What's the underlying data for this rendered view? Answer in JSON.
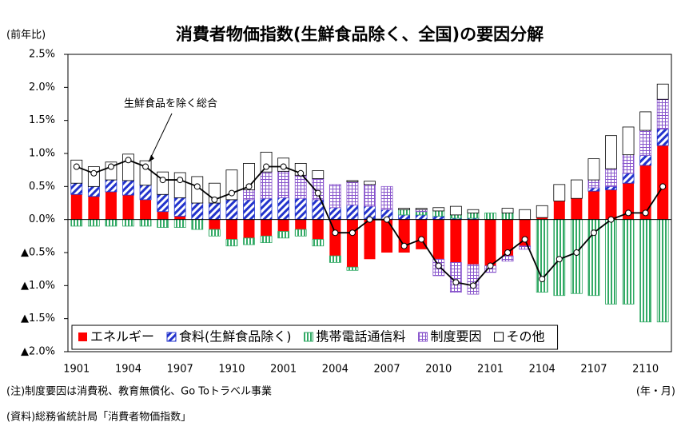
{
  "chart_data": {
    "type": "bar",
    "title": "消費者物価指数(生鮮食品除く、全国)の要因分解",
    "y_axis_label": "(前年比)",
    "x_axis_label": "(年・月)",
    "notes": [
      "(注)制度要因は消費税、教育無償化、Go Toトラベル事業",
      "(資料)総務省統計局「消費者物価指数」"
    ],
    "categories": [
      "1901",
      null,
      null,
      "1904",
      null,
      null,
      "1907",
      null,
      null,
      "1910",
      null,
      null,
      "2001",
      null,
      null,
      "2004",
      null,
      null,
      "2007",
      null,
      null,
      "2010",
      null,
      null,
      "2101",
      null,
      null,
      "2104",
      null,
      null,
      "2107",
      null,
      null,
      "2110",
      null
    ],
    "series": [
      {
        "name": "エネルギー",
        "color": "#ff0000",
        "values": [
          0.38,
          0.35,
          0.42,
          0.37,
          0.3,
          0.12,
          0.05,
          0.0,
          -0.15,
          -0.3,
          -0.28,
          -0.25,
          -0.18,
          -0.15,
          -0.3,
          -0.55,
          -0.72,
          -0.6,
          -0.5,
          -0.5,
          -0.45,
          -0.6,
          -0.65,
          -0.68,
          -0.7,
          -0.55,
          -0.4,
          0.03,
          0.28,
          0.32,
          0.43,
          0.45,
          0.55,
          0.82,
          1.12
        ]
      },
      {
        "name": "食料(生鮮食品除く)",
        "color": "#2233cc",
        "values": [
          0.17,
          0.15,
          0.18,
          0.22,
          0.22,
          0.26,
          0.28,
          0.25,
          0.25,
          0.3,
          0.3,
          0.32,
          0.33,
          0.32,
          0.3,
          0.18,
          0.22,
          0.2,
          0.15,
          0.07,
          0.07,
          0.05,
          0.02,
          0.02,
          0.0,
          0.0,
          0.0,
          0.0,
          0.0,
          0.0,
          0.05,
          0.05,
          0.15,
          0.15,
          0.25
        ]
      },
      {
        "name": "携帯電話通信料",
        "color": "#33aa66",
        "values": [
          -0.1,
          -0.1,
          -0.1,
          -0.1,
          -0.1,
          -0.12,
          -0.12,
          -0.15,
          -0.1,
          -0.1,
          -0.1,
          -0.1,
          -0.1,
          -0.1,
          -0.1,
          -0.1,
          -0.05,
          0.0,
          0.0,
          0.08,
          0.05,
          0.08,
          0.05,
          0.08,
          0.1,
          0.1,
          0.0,
          -1.1,
          -1.15,
          -1.12,
          -1.15,
          -1.28,
          -1.28,
          -1.55,
          -1.55
        ]
      },
      {
        "name": "制度要因",
        "color": "#8855cc",
        "values": [
          0,
          0,
          0,
          0,
          0,
          0,
          0,
          0,
          0,
          0,
          0.15,
          0.4,
          0.4,
          0.35,
          0.32,
          0.35,
          0.35,
          0.33,
          0.35,
          0,
          0.03,
          -0.25,
          -0.45,
          -0.45,
          -0.1,
          -0.08,
          -0.05,
          0,
          0,
          0,
          0.12,
          0.27,
          0.28,
          0.38,
          0.45
        ]
      },
      {
        "name": "その他",
        "color": "#ffffff",
        "values": [
          0.35,
          0.3,
          0.27,
          0.4,
          0.37,
          0.34,
          0.38,
          0.4,
          0.3,
          0.45,
          0.4,
          0.3,
          0.2,
          0.18,
          0.12,
          0.0,
          0.02,
          0.05,
          0.0,
          0.02,
          0.02,
          0.05,
          0.13,
          0.05,
          0.0,
          0.07,
          0.15,
          0.18,
          0.25,
          0.28,
          0.32,
          0.5,
          0.42,
          0.28,
          0.23
        ]
      }
    ],
    "line": {
      "name": "生鮮食品を除く総合",
      "color": "#000000",
      "values": [
        0.8,
        0.7,
        0.8,
        0.9,
        0.8,
        0.6,
        0.6,
        0.5,
        0.3,
        0.4,
        0.5,
        0.8,
        0.8,
        0.7,
        0.4,
        -0.2,
        -0.2,
        0.0,
        0.0,
        -0.4,
        -0.3,
        -0.7,
        -0.95,
        -1.0,
        -0.7,
        -0.5,
        -0.3,
        -0.9,
        -0.6,
        -0.5,
        -0.2,
        0.0,
        0.1,
        0.1,
        0.5
      ]
    },
    "ylim": [
      -2.0,
      2.5
    ],
    "yticks": [
      {
        "value": -2.0,
        "label": "▲2.0%"
      },
      {
        "value": -1.5,
        "label": "▲1.5%"
      },
      {
        "value": -1.0,
        "label": "▲1.0%"
      },
      {
        "value": -0.5,
        "label": "▲0.5%"
      },
      {
        "value": 0,
        "label": "0.0%"
      },
      {
        "value": 0.5,
        "label": "0.5%"
      },
      {
        "value": 1.0,
        "label": "1.0%"
      },
      {
        "value": 1.5,
        "label": "1.5%"
      },
      {
        "value": 2.0,
        "label": "2.0%"
      },
      {
        "value": 2.5,
        "label": "2.5%"
      }
    ],
    "grid": false,
    "legend": "bottom"
  }
}
